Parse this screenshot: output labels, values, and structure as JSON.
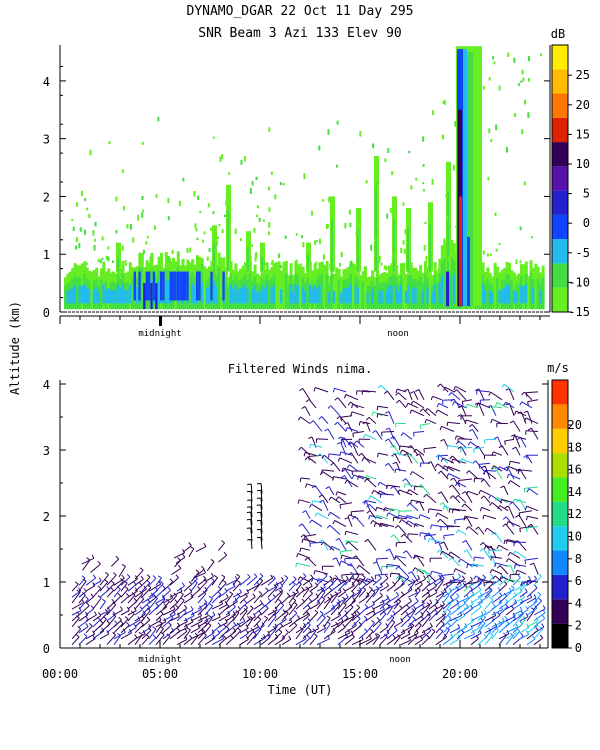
{
  "header": {
    "line1": "DYNAMO_DGAR  22 Oct 11 Day 295",
    "line2": "SNR Beam 3 Azi 133 Elev 90"
  },
  "shared": {
    "ylabel": "Altitude (km)",
    "xlabel": "Time (UT)",
    "marker_midnight": "midnight",
    "marker_noon": "noon"
  },
  "chart_data": [
    {
      "type": "heatmap",
      "title": "SNR Beam 3 Azi 133 Elev 90",
      "ylabel": "Altitude (km)",
      "ylim": [
        0,
        4.6
      ],
      "yticks": [
        "0",
        "1",
        "2",
        "3",
        "4"
      ],
      "xlim": [
        0,
        24
      ],
      "colorbar": {
        "unit": "dB",
        "range": [
          -15,
          30
        ],
        "ticks": [
          "-15",
          "-10",
          "-5",
          "0",
          "5",
          "10",
          "15",
          "20",
          "25"
        ],
        "colors": [
          "#66ee22",
          "#44dd44",
          "#22bbee",
          "#1144ff",
          "#2222cc",
          "#5511aa",
          "#330055",
          "#dd2200",
          "#ff7700",
          "#ffbb00",
          "#ffee00"
        ]
      },
      "features": [
        {
          "t_start": 0.5,
          "t_end": 24.5,
          "alt_top": 0.8,
          "snr_db": -10
        },
        {
          "t_start": 4.0,
          "t_end": 8.5,
          "alt_top": 0.9,
          "snr_db": 0
        },
        {
          "t_start": 8.0,
          "t_end": 9.0,
          "alt_top": 2.3,
          "snr_db": -10
        },
        {
          "t_start": 15.5,
          "t_end": 16.0,
          "alt_top": 2.7,
          "snr_db": -10
        },
        {
          "t_start": 19.8,
          "t_end": 20.6,
          "alt_top": 4.6,
          "snr_db": 15
        }
      ]
    },
    {
      "type": "scatter",
      "subtype": "wind-barbs",
      "title": "Filtered Winds nima.",
      "xlabel": "Time (UT)",
      "ylabel": "Altitude (km)",
      "ylim": [
        0,
        4.05
      ],
      "yticks": [
        "0",
        "1",
        "2",
        "3",
        "4"
      ],
      "xlim": [
        0,
        24
      ],
      "xticks": [
        "00:00",
        "05:00",
        "10:00",
        "15:00",
        "20:00"
      ],
      "colorbar": {
        "unit": "m/s",
        "range": [
          0,
          22
        ],
        "ticks": [
          "0",
          "2",
          "4",
          "6",
          "8",
          "10",
          "12",
          "14",
          "16",
          "18",
          "20"
        ],
        "colors": [
          "#000000",
          "#330055",
          "#2222cc",
          "#1188ff",
          "#22ccee",
          "#22dd88",
          "#44ee22",
          "#aadd00",
          "#ffcc00",
          "#ff8800",
          "#ff3300"
        ]
      },
      "wind_regions": [
        {
          "t_start": 0.5,
          "t_end": 24.0,
          "alt_bottom": 0.0,
          "alt_top": 1.0,
          "speed_ms": 4
        },
        {
          "t_start": 9.5,
          "t_end": 10.5,
          "alt_bottom": 1.5,
          "alt_top": 2.4,
          "speed_ms": 1
        },
        {
          "t_start": 12.5,
          "t_end": 24.0,
          "alt_bottom": 1.0,
          "alt_top": 4.0,
          "speed_ms": 3
        }
      ]
    }
  ]
}
